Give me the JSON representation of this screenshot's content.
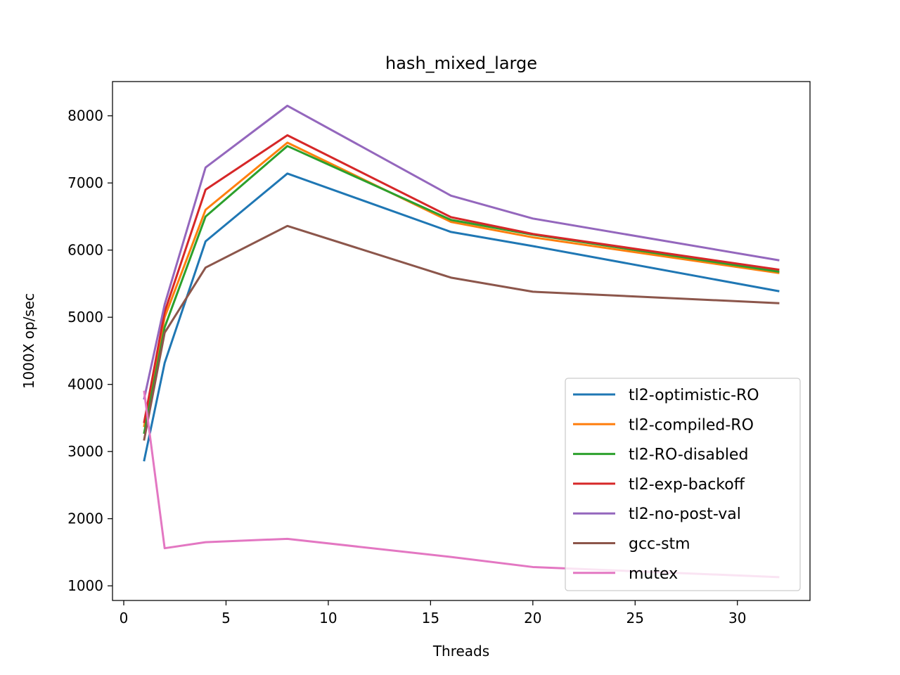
{
  "chart_data": {
    "type": "line",
    "title": "hash_mixed_large",
    "xlabel": "Threads",
    "ylabel": "1000X op/sec",
    "xlim": [
      -0.55,
      33.55
    ],
    "ylim": [
      782,
      8510
    ],
    "xticks": [
      0,
      5,
      10,
      15,
      20,
      25,
      30
    ],
    "yticks": [
      1000,
      2000,
      3000,
      4000,
      5000,
      6000,
      7000,
      8000
    ],
    "grid": false,
    "legend_position": "lower right",
    "x": [
      1,
      2,
      4,
      8,
      16,
      20,
      32
    ],
    "series": [
      {
        "name": "tl2-optimistic-RO",
        "color": "#1f77b4",
        "values": [
          2870,
          4320,
          6130,
          7140,
          6270,
          6060,
          5390
        ]
      },
      {
        "name": "tl2-compiled-RO",
        "color": "#ff7f0e",
        "values": [
          3380,
          5000,
          6600,
          7600,
          6420,
          6190,
          5660
        ]
      },
      {
        "name": "tl2-RO-disabled",
        "color": "#2ca02c",
        "values": [
          3280,
          4850,
          6500,
          7550,
          6450,
          6230,
          5680
        ]
      },
      {
        "name": "tl2-exp-backoff",
        "color": "#d62728",
        "values": [
          3440,
          5080,
          6900,
          7710,
          6490,
          6240,
          5710
        ]
      },
      {
        "name": "tl2-no-post-val",
        "color": "#9467bd",
        "values": [
          3790,
          5190,
          7230,
          8150,
          6810,
          6470,
          5850
        ]
      },
      {
        "name": "gcc-stm",
        "color": "#8c564b",
        "values": [
          3180,
          4770,
          5740,
          6360,
          5590,
          5380,
          5210
        ]
      },
      {
        "name": "mutex",
        "color": "#e377c2",
        "values": [
          3890,
          1560,
          1650,
          1700,
          1430,
          1280,
          1130
        ]
      }
    ]
  }
}
